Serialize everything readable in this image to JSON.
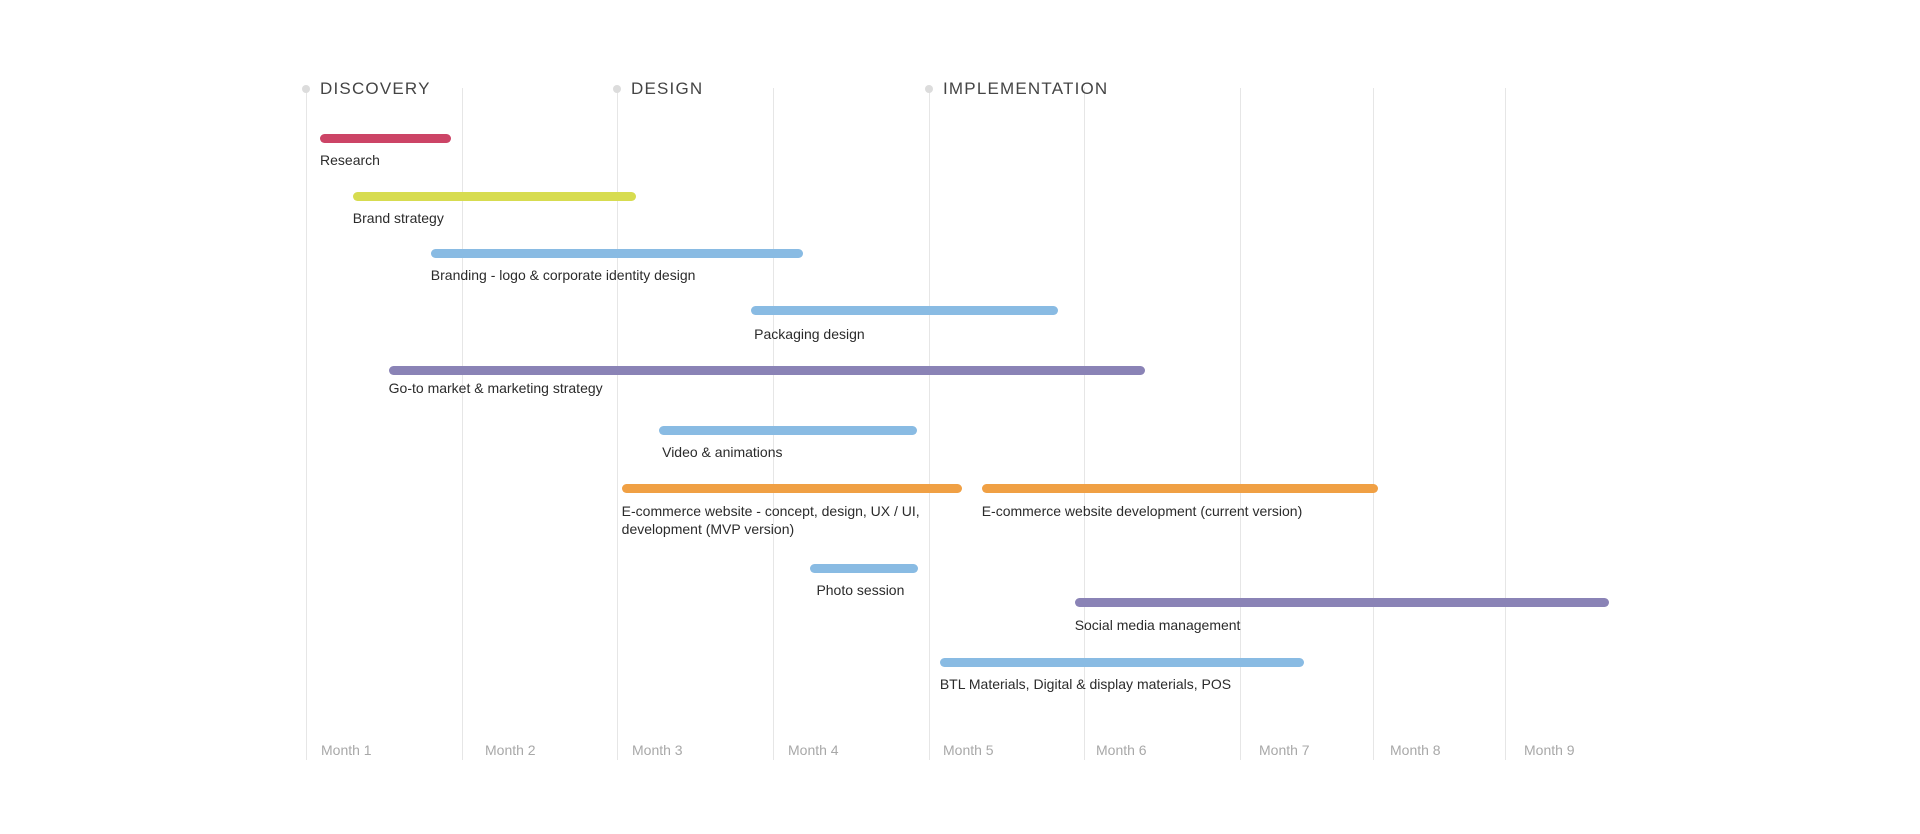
{
  "chart_data": {
    "type": "gantt",
    "title": "",
    "xlabel": "",
    "ylabel": "",
    "x_unit": "months",
    "xlim": [
      0,
      9
    ],
    "grid": true,
    "months": [
      "Month 1",
      "Month 2",
      "Month 3",
      "Month 4",
      "Month 5",
      "Month 6",
      "Month 7",
      "Month 8",
      "Month 9"
    ],
    "phases": [
      {
        "name": "DISCOVERY",
        "start": 0
      },
      {
        "name": "DESIGN",
        "start": 2
      },
      {
        "name": "IMPLEMENTATION",
        "start": 4
      }
    ],
    "tasks": [
      {
        "name": "Research",
        "start": 0.09,
        "end": 0.93,
        "color": "#cc4466"
      },
      {
        "name": "Brand strategy",
        "start": 0.3,
        "end": 2.12,
        "color": "#d7dc50"
      },
      {
        "name": "Branding - logo & corporate identity design",
        "start": 0.8,
        "end": 3.19,
        "color": "#89bbe3"
      },
      {
        "name": "Packaging design",
        "start": 2.86,
        "end": 4.83,
        "color": "#89bbe3"
      },
      {
        "name": "Go-to market & marketing strategy",
        "start": 0.53,
        "end": 5.39,
        "color": "#8a83b6"
      },
      {
        "name": "Video & animations",
        "start": 2.27,
        "end": 3.92,
        "color": "#89bbe3"
      },
      {
        "name": "E-commerce website - concept, design, UX / UI, development (MVP version)",
        "start": 2.03,
        "end": 4.21,
        "color": "#f0a044"
      },
      {
        "name": "E-commerce website development (current version)",
        "start": 4.34,
        "end": 7.04,
        "color": "#f0a044"
      },
      {
        "name": "Photo session",
        "start": 3.24,
        "end": 3.93,
        "color": "#89bbe3"
      },
      {
        "name": "Social media management",
        "start": 4.94,
        "end": 8.67,
        "color": "#8a83b6"
      },
      {
        "name": "BTL Materials, Digital & display materials, POS",
        "start": 4.07,
        "end": 6.48,
        "color": "#89bbe3"
      }
    ]
  }
}
